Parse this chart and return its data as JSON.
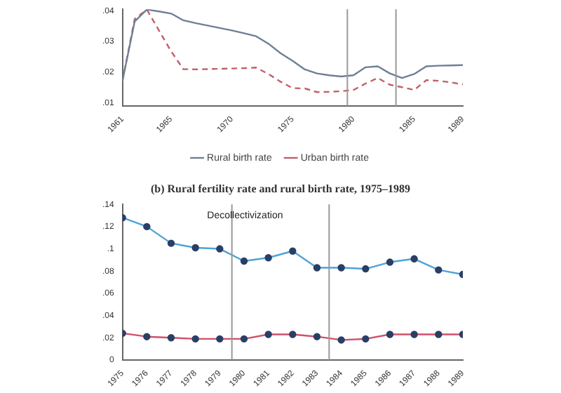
{
  "chart_data": [
    {
      "type": "line",
      "x": [
        1961,
        1962,
        1963,
        1964,
        1965,
        1966,
        1967,
        1968,
        1969,
        1970,
        1971,
        1972,
        1973,
        1974,
        1975,
        1976,
        1977,
        1978,
        1979,
        1980,
        1981,
        1982,
        1983,
        1984,
        1985,
        1986,
        1987,
        1988,
        1989
      ],
      "series": [
        {
          "name": "Rural birth rate",
          "color": "#6e7f96",
          "line_style": "solid",
          "values": [
            0.0172,
            0.0365,
            0.0404,
            0.0398,
            0.0391,
            0.0369,
            0.036,
            0.0352,
            0.0344,
            0.0336,
            0.0327,
            0.0317,
            0.0293,
            0.0262,
            0.0237,
            0.0209,
            0.0196,
            0.019,
            0.0186,
            0.019,
            0.0216,
            0.0219,
            0.0196,
            0.0181,
            0.0194,
            0.0219,
            0.0221,
            0.0222,
            0.0223
          ]
        },
        {
          "name": "Urban birth rate",
          "color": "#c0606a",
          "line_style": "dashed",
          "values": [
            0.0172,
            0.0373,
            0.0404,
            0.0336,
            0.0268,
            0.021,
            0.0209,
            0.021,
            0.0211,
            0.0212,
            0.0213,
            0.0215,
            0.0194,
            0.0169,
            0.0148,
            0.0147,
            0.0135,
            0.0136,
            0.0138,
            0.0142,
            0.0163,
            0.0181,
            0.0159,
            0.0151,
            0.0142,
            0.0174,
            0.0172,
            0.0167,
            0.016
          ]
        }
      ],
      "xlim": [
        1961,
        1989
      ],
      "xticks": [
        1961,
        1965,
        1970,
        1975,
        1980,
        1985,
        1989
      ],
      "ylim": [
        0.009,
        0.0405
      ],
      "yticks": [
        {
          "value": 0.01,
          "label": ".01"
        },
        {
          "value": 0.02,
          "label": ".02"
        },
        {
          "value": 0.03,
          "label": ".03"
        },
        {
          "value": 0.04,
          "label": ".04"
        }
      ],
      "ref_lines": [
        {
          "axis": "x",
          "value": 1979.5,
          "color": "#999999"
        },
        {
          "axis": "x",
          "value": 1983.5,
          "color": "#999999"
        }
      ],
      "legend": "bottom",
      "marker": "none",
      "grid": false
    },
    {
      "type": "line",
      "title": "(b) Rural fertility rate and rural birth rate, 1975–1989",
      "x": [
        1975,
        1976,
        1977,
        1978,
        1979,
        1980,
        1981,
        1982,
        1983,
        1984,
        1985,
        1986,
        1987,
        1988,
        1989
      ],
      "series": [
        {
          "color": "#4fa3d6",
          "values": [
            0.128,
            0.12,
            0.105,
            0.101,
            0.1,
            0.089,
            0.092,
            0.098,
            0.083,
            0.083,
            0.082,
            0.088,
            0.091,
            0.081,
            0.077
          ]
        },
        {
          "color": "#d0506a",
          "values": [
            0.024,
            0.021,
            0.02,
            0.019,
            0.019,
            0.019,
            0.023,
            0.023,
            0.021,
            0.018,
            0.019,
            0.023,
            0.023,
            0.023,
            0.023
          ]
        }
      ],
      "xlim": [
        1975,
        1989
      ],
      "xticks": [
        1975,
        1976,
        1977,
        1978,
        1979,
        1980,
        1981,
        1982,
        1983,
        1984,
        1985,
        1986,
        1987,
        1988,
        1989
      ],
      "ylim": [
        0,
        0.14
      ],
      "yticks": [
        {
          "value": 0,
          "label": "0"
        },
        {
          "value": 0.02,
          "label": ".02"
        },
        {
          "value": 0.04,
          "label": ".04"
        },
        {
          "value": 0.06,
          "label": ".06"
        },
        {
          "value": 0.08,
          "label": ".08"
        },
        {
          "value": 0.1,
          "label": ".1"
        },
        {
          "value": 0.12,
          "label": ".12"
        },
        {
          "value": 0.14,
          "label": ".14"
        }
      ],
      "ref_lines": [
        {
          "axis": "x",
          "value": 1979.5,
          "color": "#999999"
        },
        {
          "axis": "x",
          "value": 1983.5,
          "color": "#999999"
        }
      ],
      "annotations": [
        "Decollectivization"
      ],
      "marker": "circle",
      "grid": false,
      "legend": false
    }
  ]
}
